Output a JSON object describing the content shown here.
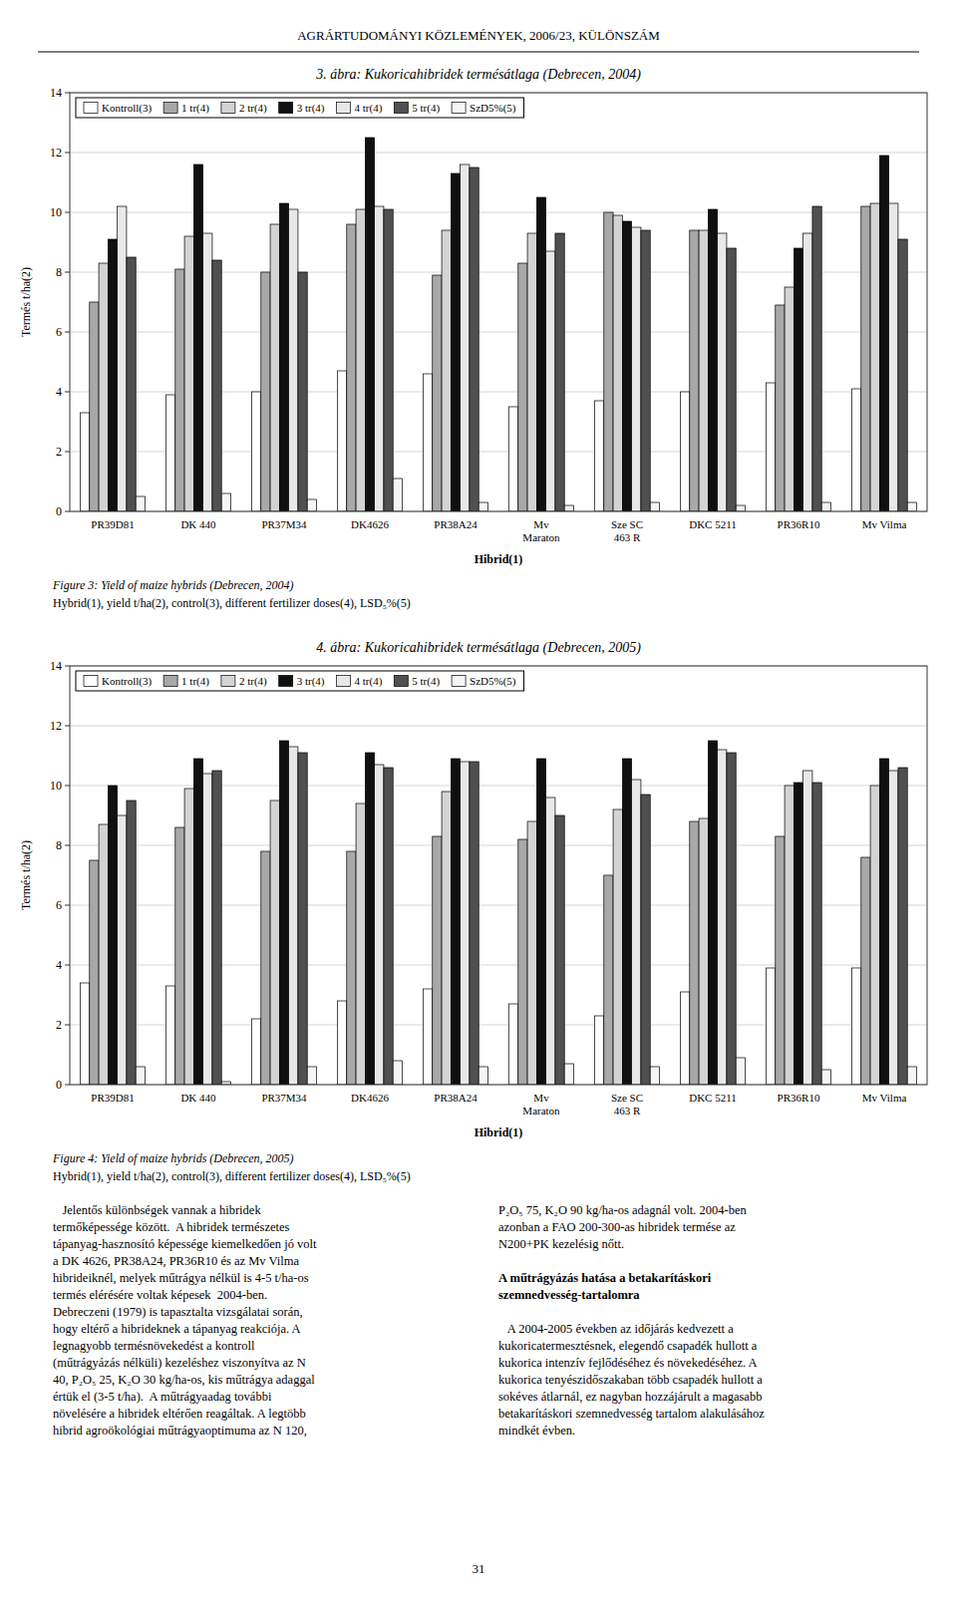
{
  "page_title": "AGRÁRTUDOMÁNYI KÖZLEMÉNYEK, 2006/23, KÜLÖNSZÁM",
  "chart_data": [
    {
      "type": "bar",
      "title": "3. ábra: Kukoricahibridek termésátlaga (Debrecen, 2004)",
      "xlabel": "Hibrid(1)",
      "ylabel": "Termés t/ha(2)",
      "categories": [
        "PR39D81",
        "DK 440",
        "PR37M34",
        "DK4626",
        "PR38A24",
        "Mv\nMaraton",
        "Sze SC\n463 R",
        "DKC 5211",
        "PR36R10",
        "Mv Vilma"
      ],
      "series": [
        {
          "name": "Kontroll(3)",
          "color": "#ffffff",
          "values": [
            3.3,
            3.9,
            4.0,
            4.7,
            4.6,
            3.5,
            3.7,
            4.0,
            4.3,
            4.1
          ]
        },
        {
          "name": "1 tr(4)",
          "color": "#a8a8a8",
          "values": [
            7.0,
            8.1,
            8.0,
            9.6,
            7.9,
            8.3,
            10.0,
            9.4,
            6.9,
            10.2
          ]
        },
        {
          "name": "2 tr(4)",
          "color": "#d3d3d3",
          "values": [
            8.3,
            9.2,
            9.6,
            10.1,
            9.4,
            9.3,
            9.9,
            9.4,
            7.5,
            10.3
          ]
        },
        {
          "name": "3 tr(4)",
          "color": "#101010",
          "values": [
            9.1,
            11.6,
            10.3,
            12.5,
            11.3,
            10.5,
            9.7,
            10.1,
            8.8,
            11.9
          ]
        },
        {
          "name": "4 tr(4)",
          "color": "#e8e8e8",
          "values": [
            10.2,
            9.3,
            10.1,
            10.2,
            11.6,
            8.7,
            9.5,
            9.3,
            9.3,
            10.3
          ]
        },
        {
          "name": "5 tr(4)",
          "color": "#505050",
          "values": [
            8.5,
            8.4,
            8.0,
            10.1,
            11.5,
            9.3,
            9.4,
            8.8,
            10.2,
            9.1
          ]
        },
        {
          "name": "SzD5%(5)",
          "color": "#f5f5f5",
          "values": [
            0.5,
            0.6,
            0.4,
            1.1,
            0.3,
            0.2,
            0.3,
            0.2,
            0.3,
            0.3
          ]
        }
      ],
      "ylim": [
        0,
        14
      ],
      "yticks": [
        0,
        2,
        4,
        6,
        8,
        10,
        12,
        14
      ],
      "grid": true,
      "legend": "upper left",
      "annotations": [
        "Figure 3: Yield of maize hybrids (Debrecen, 2004)",
        "Hybrid(1), yield t/ha(2), control(3), different fertilizer doses(4), LSD₅%(5)"
      ]
    },
    {
      "type": "bar",
      "title": "4. ábra: Kukoricahibridek termésátlaga (Debrecen, 2005)",
      "xlabel": "Hibrid(1)",
      "ylabel": "Termés t/ha(2)",
      "categories": [
        "PR39D81",
        "DK 440",
        "PR37M34",
        "DK4626",
        "PR38A24",
        "Mv\nMaraton",
        "Sze SC\n463 R",
        "DKC 5211",
        "PR36R10",
        "Mv Vilma"
      ],
      "series": [
        {
          "name": "Kontroll(3)",
          "color": "#ffffff",
          "values": [
            3.4,
            3.3,
            2.2,
            2.8,
            3.2,
            2.7,
            2.3,
            3.1,
            3.9,
            3.9
          ]
        },
        {
          "name": "1 tr(4)",
          "color": "#a8a8a8",
          "values": [
            7.5,
            8.6,
            7.8,
            7.8,
            8.3,
            8.2,
            7.0,
            8.8,
            8.3,
            7.6
          ]
        },
        {
          "name": "2 tr(4)",
          "color": "#d3d3d3",
          "values": [
            8.7,
            9.9,
            9.5,
            9.4,
            9.8,
            8.8,
            9.2,
            8.9,
            10.0,
            10.0
          ]
        },
        {
          "name": "3 tr(4)",
          "color": "#101010",
          "values": [
            10.0,
            10.9,
            11.5,
            11.1,
            10.9,
            10.9,
            10.9,
            11.5,
            10.1,
            10.9
          ]
        },
        {
          "name": "4 tr(4)",
          "color": "#e8e8e8",
          "values": [
            9.0,
            10.4,
            11.3,
            10.7,
            10.8,
            9.6,
            10.2,
            11.2,
            10.5,
            10.5
          ]
        },
        {
          "name": "5 tr(4)",
          "color": "#505050",
          "values": [
            9.5,
            10.5,
            11.1,
            10.6,
            10.8,
            9.0,
            9.7,
            11.1,
            10.1,
            10.6
          ]
        },
        {
          "name": "SzD5%(5)",
          "color": "#f5f5f5",
          "values": [
            0.6,
            0.1,
            0.6,
            0.8,
            0.6,
            0.7,
            0.6,
            0.9,
            0.5,
            0.6
          ]
        }
      ],
      "ylim": [
        0,
        14
      ],
      "yticks": [
        0,
        2,
        4,
        6,
        8,
        10,
        12,
        14
      ],
      "grid": true,
      "legend": "upper left",
      "annotations": [
        "Figure 4: Yield of maize hybrids (Debrecen, 2005)",
        "Hybrid(1), yield t/ha(2), control(3), different fertilizer doses(4), LSD₅%(5)"
      ]
    }
  ],
  "body_left": [
    "   Jelentős különbségek vannak a hibridek",
    "termőképessége között.  A hibridek természetes",
    "tápanyag-hasznosító képessége kiemelkedően jó volt",
    "a DK 4626, PR38A24, PR36R10 és az Mv Vilma",
    "hibrideiknél, melyek műtrágya nélkül is 4-5 t/ha-os",
    "termés elérésére voltak képesek  2004-ben.",
    "Debreczeni (1979) is tapasztalta vizsgálatai során,",
    "hogy eltérő a hibrideknek a tápanyag reakciója. A",
    "legnagyobb termésnövekedést a kontroll",
    "(műtrágyázás nélküli) kezeléshez viszonyítva az N",
    "40, P₂O₅ 25, K₂O 30 kg/ha-os, kis műtrágya adaggal",
    "értük el (3-5 t/ha).  A műtrágyaadag további",
    "növelésére a hibridek eltérően reagáltak. A legtöbb",
    "hibrid agroökológiai műtrágyaoptimuma az N 120,"
  ],
  "body_right": [
    [
      "P₂O₅ 75, K₂O 90 kg/ha-os adagnál volt. 2004-ben",
      "azonban a FAO 200-300-as hibridek termése az",
      "N200+PK kezelésig nőtt."
    ],
    [
      "   A 2004-2005 években az időjárás kedvezett a",
      "kukoricatermesztésnek, elegendő csapadék hullott a",
      "kukorica intenzív fejlődéséhez és növekedéséhez. A",
      "kukorica tenyészidőszakaban több csapadék hullott a",
      "sokéves átlагnál, ez nagyban hozzájárult a magasabb",
      "betakarításkori szemnedvesség tartalom alakulásához",
      "mindkét évben."
    ]
  ],
  "section_heading": [
    "A műtrágyázás hatása a betakarításkori",
    "szemnedvesség-tartalomra"
  ],
  "page_number": "31"
}
